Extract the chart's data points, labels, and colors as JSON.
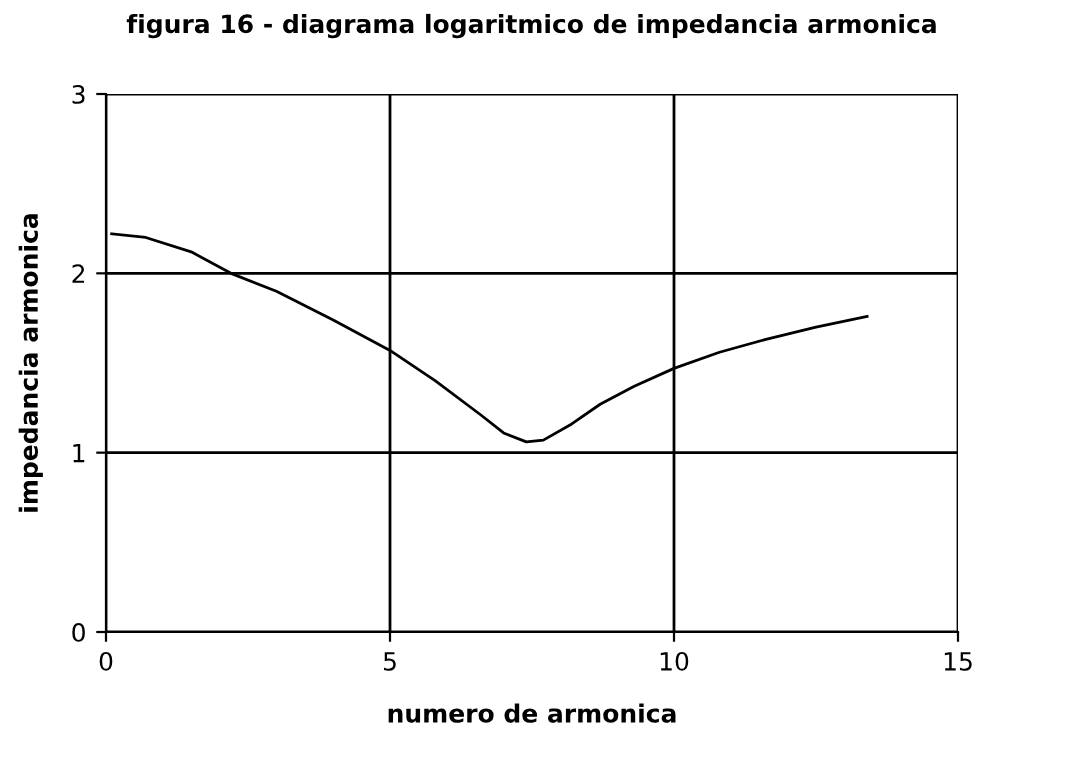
{
  "chart_data": {
    "type": "line",
    "title": "figura 16 - diagrama logaritmico de impedancia armonica",
    "xlabel": "numero de armonica",
    "ylabel": "impedancia armonica",
    "series": [
      {
        "color": "#000000",
        "x": [
          0.1,
          0.7,
          1.5,
          2.2,
          3.0,
          4.0,
          5.0,
          5.8,
          6.6,
          7.0,
          7.4,
          7.7,
          8.2,
          8.7,
          9.3,
          10.0,
          10.8,
          11.6,
          12.5,
          13.4
        ],
        "values": [
          2.22,
          2.2,
          2.12,
          2.0,
          1.9,
          1.74,
          1.57,
          1.4,
          1.21,
          1.11,
          1.06,
          1.07,
          1.16,
          1.27,
          1.37,
          1.47,
          1.56,
          1.63,
          1.7,
          1.76
        ]
      }
    ],
    "xlim": [
      0,
      15
    ],
    "ylim": [
      0,
      3
    ],
    "xticks": [
      0,
      5,
      10,
      15
    ],
    "yticks": [
      0,
      1,
      2,
      3
    ],
    "grid": true,
    "marker": "none",
    "line_style": "solid",
    "legend": false
  }
}
